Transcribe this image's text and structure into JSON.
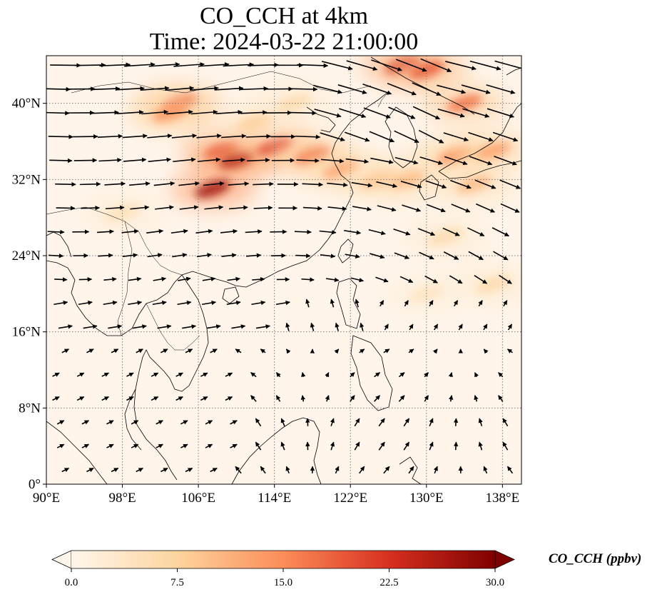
{
  "title": {
    "line1": "CO_CCH at 4km",
    "line2": "Time: 2024-03-22 21:00:00"
  },
  "map": {
    "lon_range": [
      90,
      140
    ],
    "lat_range": [
      0,
      45
    ],
    "lon_ticks": [
      {
        "value": 90,
        "label": "90°E"
      },
      {
        "value": 98,
        "label": "98°E"
      },
      {
        "value": 106,
        "label": "106°E"
      },
      {
        "value": 114,
        "label": "114°E"
      },
      {
        "value": 122,
        "label": "122°E"
      },
      {
        "value": 130,
        "label": "130°E"
      },
      {
        "value": 138,
        "label": "138°E"
      }
    ],
    "lat_ticks": [
      {
        "value": 0,
        "label": "0°"
      },
      {
        "value": 8,
        "label": "8°N"
      },
      {
        "value": 16,
        "label": "16°N"
      },
      {
        "value": 24,
        "label": "24°N"
      },
      {
        "value": 32,
        "label": "32°N"
      },
      {
        "value": 40,
        "label": "40°N"
      }
    ],
    "gridlines": "dotted",
    "background_color": "#fff5eb",
    "coastline_color": "#000000",
    "vector_field": "wind arrows"
  },
  "colorbar": {
    "label": "CO_CCH (ppbv)",
    "min": 0.0,
    "max": 30.0,
    "extend": "both",
    "colormap": "OrRd",
    "ticks": [
      {
        "value": 0.0,
        "label": "0.0"
      },
      {
        "value": 7.5,
        "label": "7.5"
      },
      {
        "value": 15.0,
        "label": "15.0"
      },
      {
        "value": 22.5,
        "label": "22.5"
      },
      {
        "value": 30.0,
        "label": "30.0"
      }
    ],
    "colors": [
      "#fff7ec",
      "#fdd49e",
      "#fc8d59",
      "#d7301f",
      "#7f0000"
    ]
  },
  "plumes": [
    {
      "lon": 108.5,
      "lat": 35.0,
      "value": 22
    },
    {
      "lon": 110.0,
      "lat": 34.0,
      "value": 26
    },
    {
      "lon": 107.5,
      "lat": 31.0,
      "value": 27
    },
    {
      "lon": 114.0,
      "lat": 35.5,
      "value": 22
    },
    {
      "lon": 118.0,
      "lat": 34.5,
      "value": 17
    },
    {
      "lon": 121.0,
      "lat": 33.0,
      "value": 13
    },
    {
      "lon": 125.0,
      "lat": 32.0,
      "value": 10
    },
    {
      "lon": 128.0,
      "lat": 32.0,
      "value": 10
    },
    {
      "lon": 104.0,
      "lat": 40.0,
      "value": 18
    },
    {
      "lon": 103.0,
      "lat": 39.0,
      "value": 14
    },
    {
      "lon": 127.5,
      "lat": 44.0,
      "value": 23
    },
    {
      "lon": 130.0,
      "lat": 43.5,
      "value": 19
    },
    {
      "lon": 134.0,
      "lat": 40.0,
      "value": 17
    },
    {
      "lon": 133.0,
      "lat": 34.5,
      "value": 15
    },
    {
      "lon": 137.0,
      "lat": 35.0,
      "value": 13
    },
    {
      "lon": 135.0,
      "lat": 31.5,
      "value": 10
    },
    {
      "lon": 132.0,
      "lat": 26.0,
      "value": 6
    },
    {
      "lon": 137.0,
      "lat": 21.0,
      "value": 6
    },
    {
      "lon": 130.0,
      "lat": 20.0,
      "value": 4
    },
    {
      "lon": 98.0,
      "lat": 28.5,
      "value": 5
    },
    {
      "lon": 112.0,
      "lat": 38.0,
      "value": 8
    },
    {
      "lon": 116.0,
      "lat": 40.0,
      "value": 6
    }
  ]
}
